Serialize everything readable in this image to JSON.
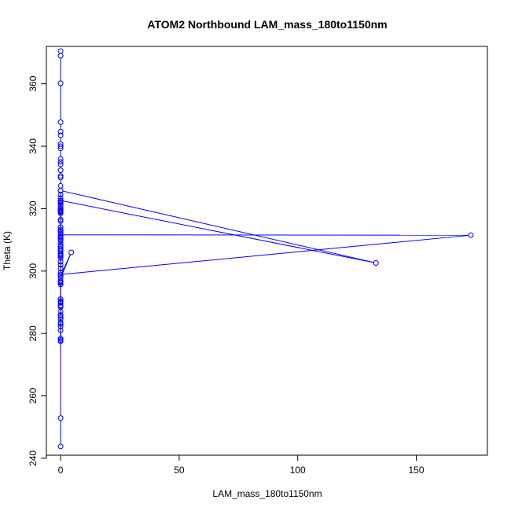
{
  "chart_data": {
    "type": "line",
    "title": "ATOM2 Northbound LAM_mass_180to1150nm",
    "xlabel": "LAM_mass_180to1150nm",
    "ylabel": "Theta (K)",
    "xlim": [
      -6,
      180
    ],
    "ylim": [
      241,
      372
    ],
    "xticks": [
      0,
      50,
      100,
      150
    ],
    "yticks": [
      240,
      260,
      280,
      300,
      320,
      340,
      360
    ],
    "xtick_labels": [
      "0",
      "50",
      "100",
      "150"
    ],
    "ytick_labels": [
      "240",
      "260",
      "280",
      "300",
      "320",
      "340",
      "360"
    ],
    "grid": false,
    "color": "#0000ff",
    "marker": "open-circle",
    "series": [
      {
        "x": [
          0,
          0,
          0,
          0,
          0,
          0,
          0,
          0,
          0,
          0,
          0,
          0,
          0,
          0,
          0,
          0,
          0,
          0,
          0,
          0,
          0,
          0,
          0,
          0,
          0,
          0,
          0,
          0,
          173,
          0,
          0,
          0,
          0,
          0,
          0,
          0,
          0,
          0,
          0,
          0,
          0,
          0,
          0,
          0,
          0,
          0,
          0,
          0,
          0,
          0,
          133,
          0,
          0,
          0,
          0,
          0,
          0,
          0,
          0,
          0,
          0,
          0,
          0,
          4.5,
          0,
          0,
          0,
          0,
          0,
          0,
          0,
          0,
          0,
          0,
          0,
          0,
          0,
          0,
          0,
          0,
          0,
          0,
          0,
          0,
          0,
          0,
          0,
          0,
          0,
          0
        ],
        "y": [
          370.5,
          369.0,
          360.2,
          347.7,
          344.7,
          343.5,
          340.7,
          340.0,
          339.3,
          335.9,
          335.0,
          334.2,
          332.3,
          330.5,
          330.0,
          327.3,
          325.8,
          324.5,
          323.4,
          322.5,
          321.0,
          319.5,
          318.9,
          316.0,
          314.1,
          313.3,
          312.4,
          311.6,
          311.5,
          298.9,
          300.9,
          302.0,
          303.0,
          304.2,
          305.0,
          305.7,
          306.3,
          307.2,
          308.2,
          309.0,
          309.8,
          310.7,
          311.0,
          318.5,
          319.0,
          320.0,
          320.8,
          321.7,
          322.1,
          322.6,
          302.6,
          325.8,
          319.6,
          319.2,
          316.5,
          312.9,
          310.2,
          307.8,
          306.8,
          305.3,
          304.8,
          299.6,
          298.5,
          306.0,
          297.8,
          296.8,
          296.2,
          295.7,
          291.0,
          290.4,
          289.8,
          289.0,
          285.9,
          285.2,
          284.5,
          283.0,
          282.3,
          281.0,
          278.4,
          277.9,
          277.5,
          285.9,
          287.0,
          288.8,
          290.1,
          296.5,
          288.5,
          283.5,
          252.9,
          243.8
        ]
      }
    ]
  }
}
